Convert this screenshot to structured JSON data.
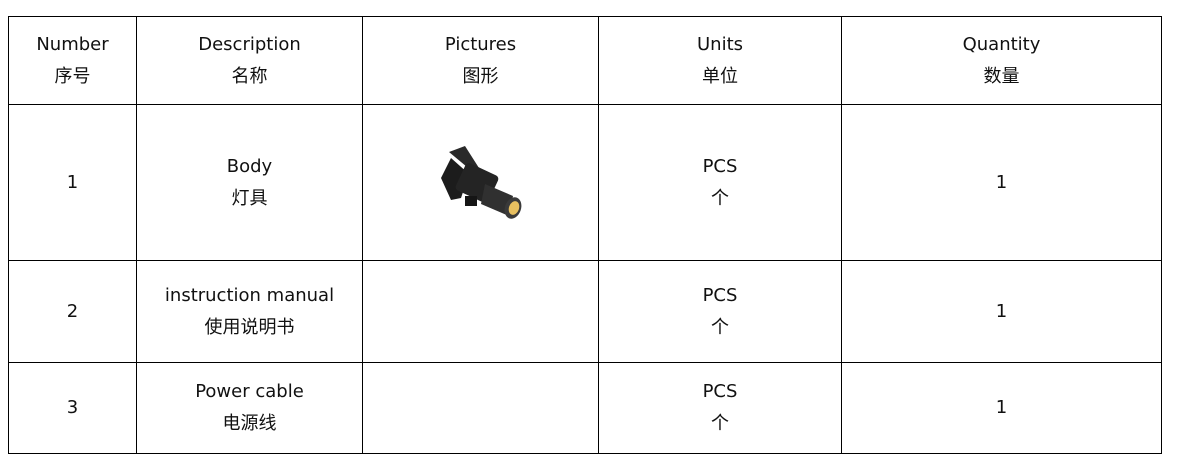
{
  "table": {
    "header": [
      [
        "Number",
        "序号"
      ],
      [
        "Description",
        "名称"
      ],
      [
        "Pictures",
        "图形"
      ],
      [
        "Units",
        "单位"
      ],
      [
        "Quantity",
        "数量"
      ]
    ],
    "rows": [
      {
        "number": 1,
        "description": [
          "Body",
          "灯具"
        ],
        "units": [
          "PCS",
          "个"
        ],
        "quantity": 1
      },
      {
        "number": 2,
        "description": [
          "instruction manual",
          "使用说明书"
        ],
        "units": [
          "PCS",
          "个"
        ],
        "quantity": 1
      },
      {
        "number": 3,
        "description": [
          "Power cable",
          "电源线"
        ],
        "units": [
          "PCS",
          "个"
        ],
        "quantity": 1
      }
    ]
  }
}
